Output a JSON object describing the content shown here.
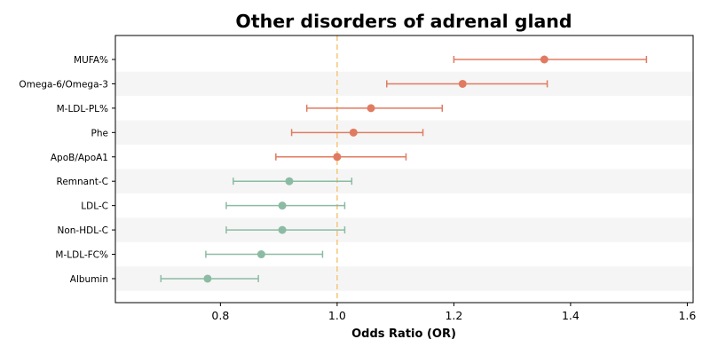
{
  "chart_data": {
    "type": "forest",
    "title": "Other disorders of adrenal gland",
    "xlabel": "Odds Ratio (OR)",
    "ylabel": "",
    "xlim": [
      0.62,
      1.61
    ],
    "xticks": [
      0.8,
      1.0,
      1.2,
      1.4,
      1.6
    ],
    "xtick_labels": [
      "0.8",
      "1.0",
      "1.2",
      "1.4",
      "1.6"
    ],
    "reference_line": 1.0,
    "reference_color": "#f4c67a",
    "grid": false,
    "categories": [
      "MUFA%",
      "Omega-6/Omega-3",
      "M-LDL-PL%",
      "Phe",
      "ApoB/ApoA1",
      "Remnant-C",
      "LDL-C",
      "Non-HDL-C",
      "M-LDL-FC%",
      "Albumin"
    ],
    "series": [
      {
        "color": "#e07b62",
        "points": [
          {
            "label": "MUFA%",
            "or": 1.355,
            "lower": 1.2,
            "upper": 1.53
          },
          {
            "label": "Omega-6/Omega-3",
            "or": 1.215,
            "lower": 1.085,
            "upper": 1.36
          },
          {
            "label": "M-LDL-PL%",
            "or": 1.058,
            "lower": 0.948,
            "upper": 1.18
          },
          {
            "label": "Phe",
            "or": 1.028,
            "lower": 0.922,
            "upper": 1.147
          },
          {
            "label": "ApoB/ApoA1",
            "or": 1.0,
            "lower": 0.895,
            "upper": 1.118
          }
        ]
      },
      {
        "color": "#8cbba3",
        "points": [
          {
            "label": "Remnant-C",
            "or": 0.918,
            "lower": 0.822,
            "upper": 1.025
          },
          {
            "label": "LDL-C",
            "or": 0.906,
            "lower": 0.81,
            "upper": 1.013
          },
          {
            "label": "Non-HDL-C",
            "or": 0.906,
            "lower": 0.81,
            "upper": 1.013
          },
          {
            "label": "M-LDL-FC%",
            "or": 0.87,
            "lower": 0.775,
            "upper": 0.975
          },
          {
            "label": "Albumin",
            "or": 0.778,
            "lower": 0.698,
            "upper": 0.865
          }
        ]
      }
    ]
  }
}
